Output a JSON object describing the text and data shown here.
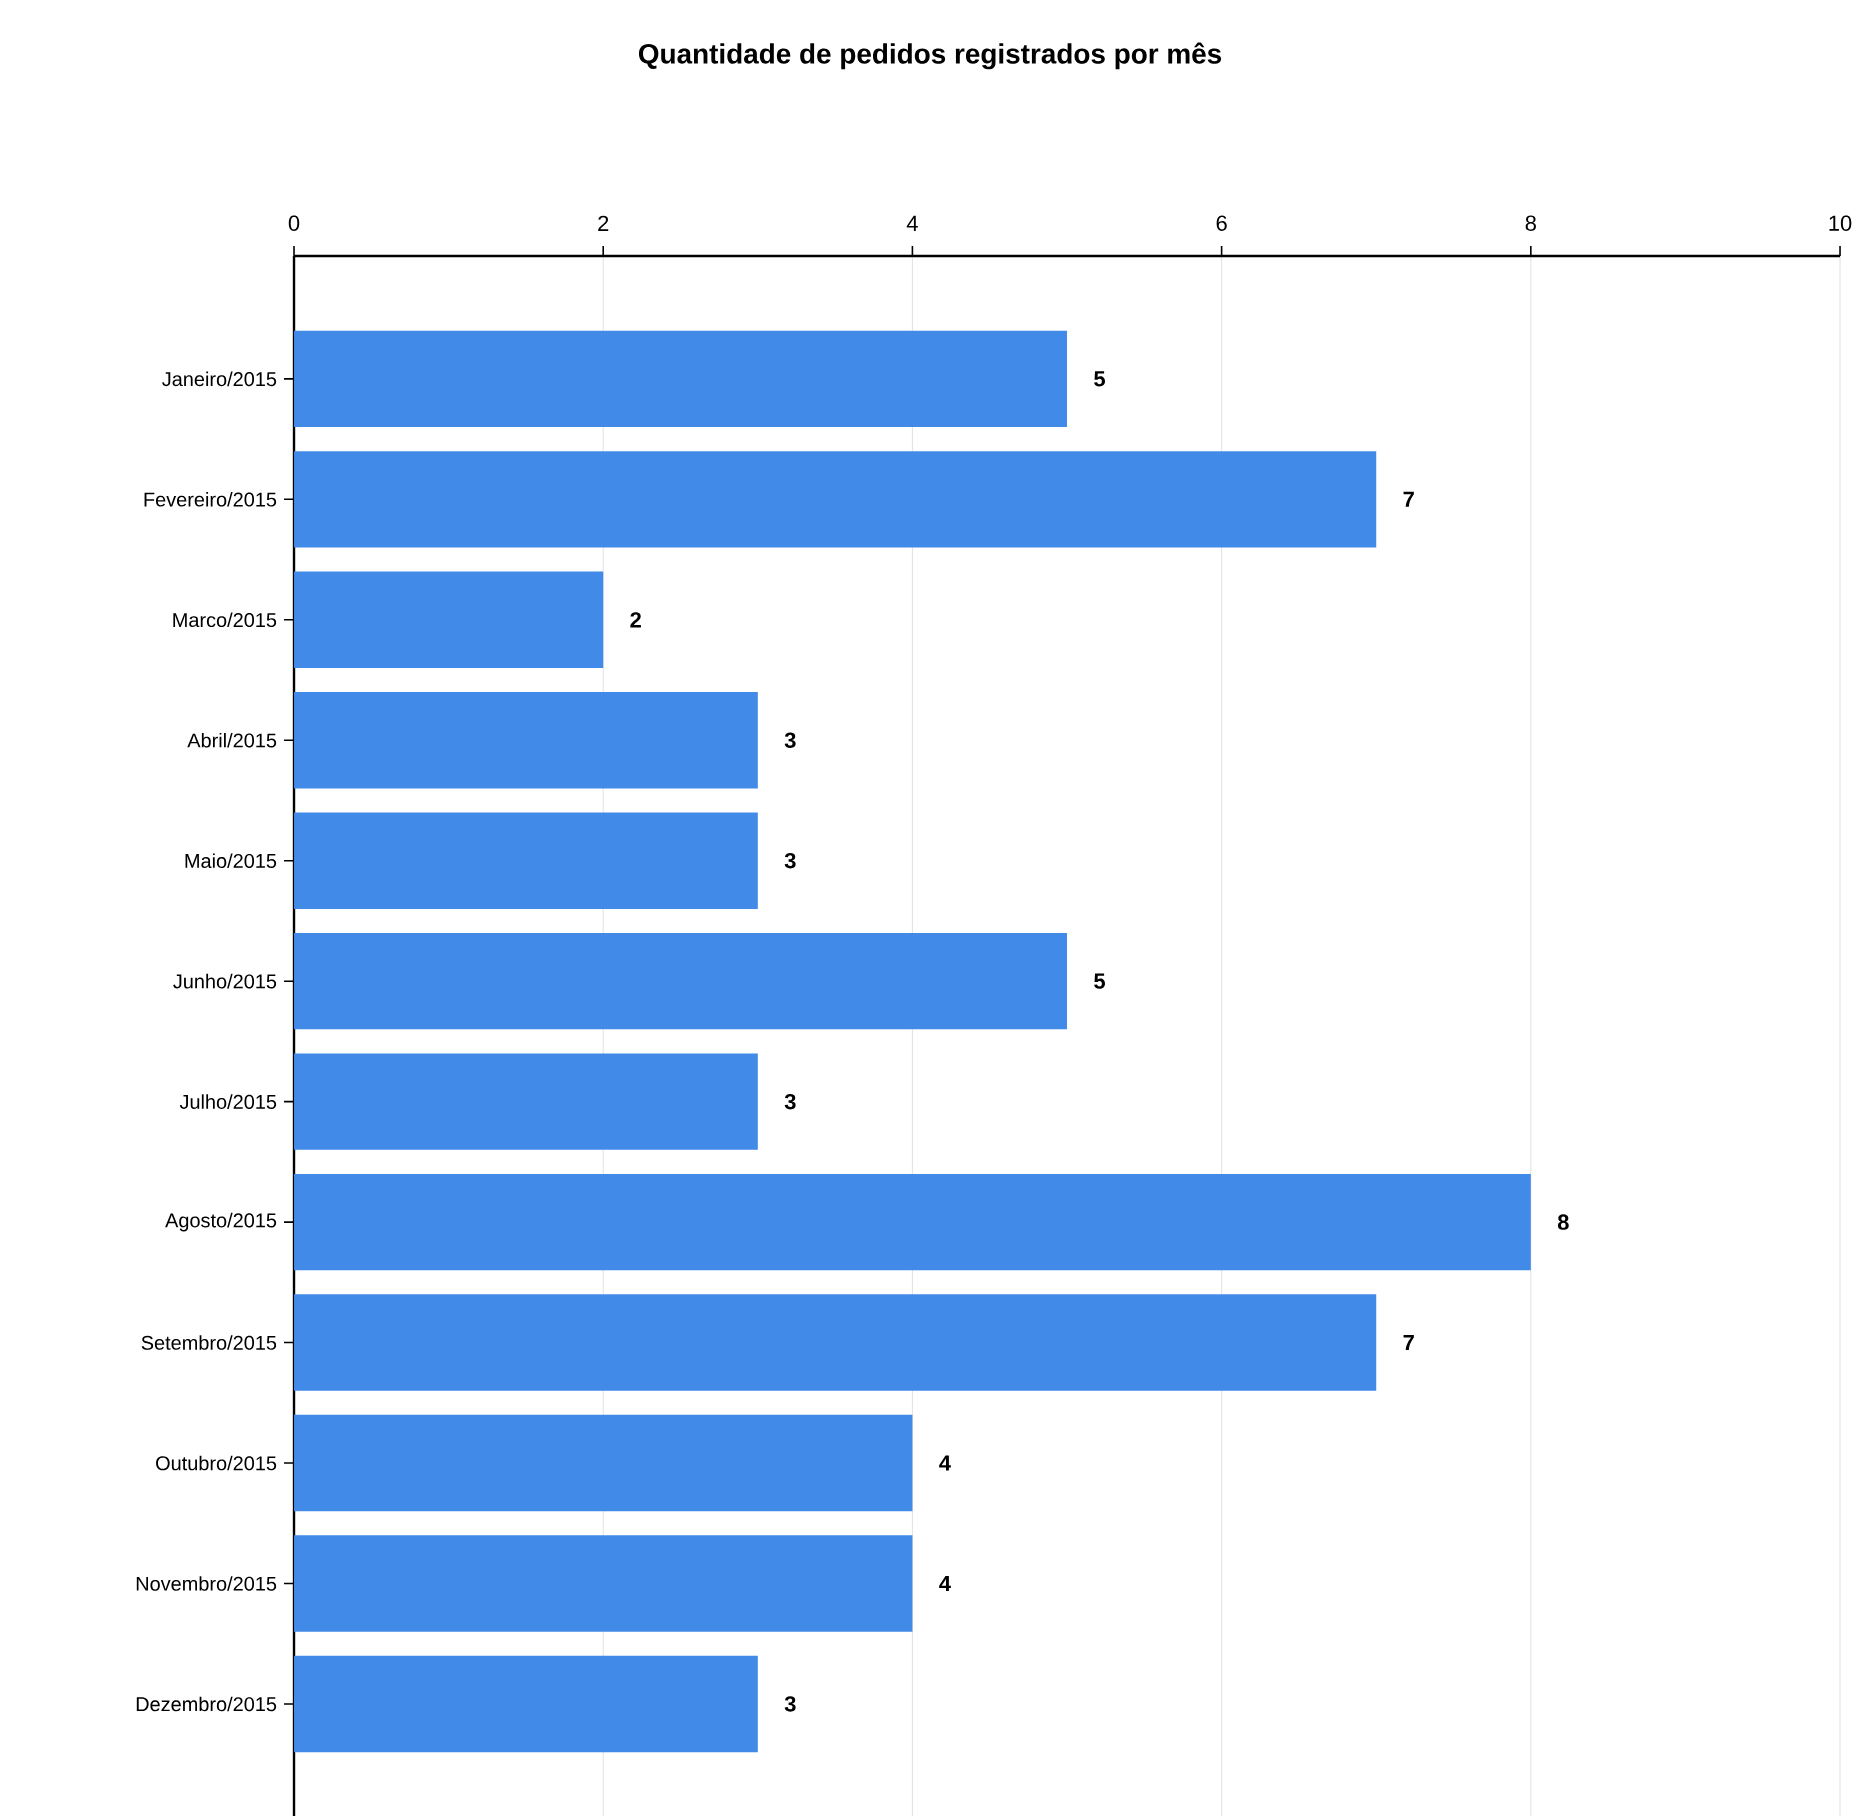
{
  "chart_data": {
    "type": "bar",
    "orientation": "horizontal",
    "title": "Quantidade de pedidos registrados por mês",
    "categories": [
      "Janeiro/2015",
      "Fevereiro/2015",
      "Marco/2015",
      "Abril/2015",
      "Maio/2015",
      "Junho/2015",
      "Julho/2015",
      "Agosto/2015",
      "Setembro/2015",
      "Outubro/2015",
      "Novembro/2015",
      "Dezembro/2015"
    ],
    "values": [
      5,
      7,
      2,
      3,
      3,
      5,
      3,
      8,
      7,
      4,
      4,
      3
    ],
    "color": "#418ae8",
    "xlim": [
      0,
      10
    ],
    "xticks": [
      0,
      2,
      4,
      6,
      8,
      10
    ],
    "grid": "x",
    "data_labels": true
  }
}
